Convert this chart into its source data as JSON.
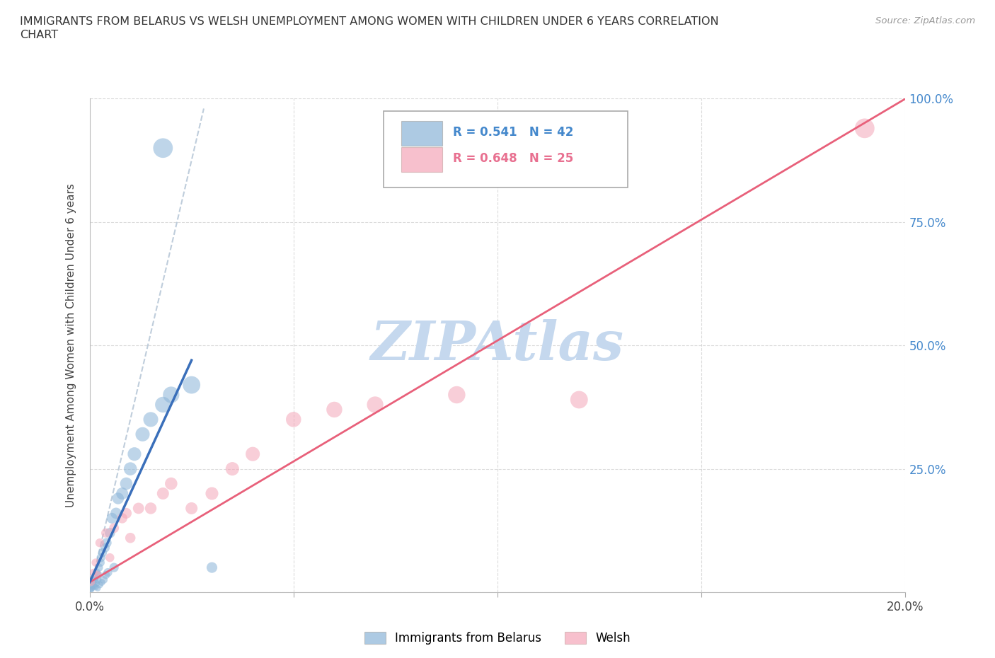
{
  "title_line1": "IMMIGRANTS FROM BELARUS VS WELSH UNEMPLOYMENT AMONG WOMEN WITH CHILDREN UNDER 6 YEARS CORRELATION",
  "title_line2": "CHART",
  "source": "Source: ZipAtlas.com",
  "ylabel": "Unemployment Among Women with Children Under 6 years",
  "xlim": [
    0.0,
    0.2
  ],
  "ylim": [
    0.0,
    1.0
  ],
  "xticks": [
    0.0,
    0.05,
    0.1,
    0.15,
    0.2
  ],
  "yticks": [
    0.0,
    0.25,
    0.5,
    0.75,
    1.0
  ],
  "xtick_labels": [
    "0.0%",
    "",
    "",
    "",
    "20.0%"
  ],
  "ytick_labels_right": [
    "",
    "25.0%",
    "50.0%",
    "75.0%",
    "100.0%"
  ],
  "legend_r1": "R = 0.541",
  "legend_n1": "N = 42",
  "legend_r2": "R = 0.648",
  "legend_n2": "N = 25",
  "legend_label1": "Immigrants from Belarus",
  "legend_label2": "Welsh",
  "color_blue": "#8ab4d8",
  "color_pink": "#f4a6b8",
  "color_line_blue": "#3a6fba",
  "color_line_pink": "#e8607a",
  "color_line_grey": "#b8c8d8",
  "watermark": "ZIPAtlas",
  "watermark_color": "#c5d8ee",
  "blue_r": 0.541,
  "pink_r": 0.648,
  "blue_line_x0": 0.0,
  "blue_line_y0": 0.02,
  "blue_line_x1": 0.025,
  "blue_line_y1": 0.47,
  "pink_line_x0": 0.0,
  "pink_line_y0": 0.02,
  "pink_line_x1": 0.2,
  "pink_line_y1": 1.0,
  "grey_line_x0": 0.028,
  "grey_line_y0": 0.98,
  "grey_line_x1": 0.0,
  "grey_line_y1": 0.0,
  "blue_scatter_x": [
    0.0003,
    0.0005,
    0.0007,
    0.0008,
    0.001,
    0.001,
    0.0012,
    0.0013,
    0.0015,
    0.0015,
    0.0017,
    0.0018,
    0.002,
    0.002,
    0.0022,
    0.0023,
    0.0025,
    0.0027,
    0.0028,
    0.003,
    0.0032,
    0.0035,
    0.0038,
    0.004,
    0.0042,
    0.0045,
    0.005,
    0.0055,
    0.006,
    0.0065,
    0.007,
    0.008,
    0.009,
    0.01,
    0.011,
    0.013,
    0.015,
    0.018,
    0.02,
    0.025,
    0.03,
    0.018
  ],
  "blue_scatter_y": [
    0.005,
    0.005,
    0.01,
    0.008,
    0.015,
    0.02,
    0.012,
    0.025,
    0.01,
    0.03,
    0.018,
    0.04,
    0.008,
    0.025,
    0.035,
    0.05,
    0.015,
    0.06,
    0.07,
    0.02,
    0.08,
    0.025,
    0.09,
    0.035,
    0.1,
    0.04,
    0.12,
    0.15,
    0.05,
    0.16,
    0.19,
    0.2,
    0.22,
    0.25,
    0.28,
    0.32,
    0.35,
    0.38,
    0.4,
    0.42,
    0.05,
    0.9
  ],
  "blue_scatter_size": [
    30,
    30,
    30,
    30,
    40,
    40,
    40,
    50,
    40,
    50,
    50,
    60,
    40,
    60,
    60,
    70,
    50,
    70,
    80,
    50,
    80,
    60,
    90,
    70,
    100,
    80,
    110,
    120,
    90,
    130,
    140,
    150,
    160,
    180,
    190,
    210,
    230,
    260,
    280,
    320,
    120,
    400
  ],
  "pink_scatter_x": [
    0.0005,
    0.001,
    0.0015,
    0.002,
    0.0025,
    0.004,
    0.005,
    0.006,
    0.008,
    0.009,
    0.01,
    0.012,
    0.015,
    0.018,
    0.02,
    0.025,
    0.03,
    0.035,
    0.04,
    0.05,
    0.06,
    0.07,
    0.09,
    0.12,
    0.19
  ],
  "pink_scatter_y": [
    0.02,
    0.04,
    0.06,
    0.035,
    0.1,
    0.12,
    0.07,
    0.13,
    0.15,
    0.16,
    0.11,
    0.17,
    0.17,
    0.2,
    0.22,
    0.17,
    0.2,
    0.25,
    0.28,
    0.35,
    0.37,
    0.38,
    0.4,
    0.39,
    0.94
  ],
  "pink_scatter_size": [
    50,
    60,
    70,
    60,
    80,
    90,
    80,
    100,
    110,
    120,
    110,
    130,
    140,
    150,
    160,
    150,
    170,
    190,
    210,
    240,
    260,
    280,
    310,
    320,
    400
  ]
}
